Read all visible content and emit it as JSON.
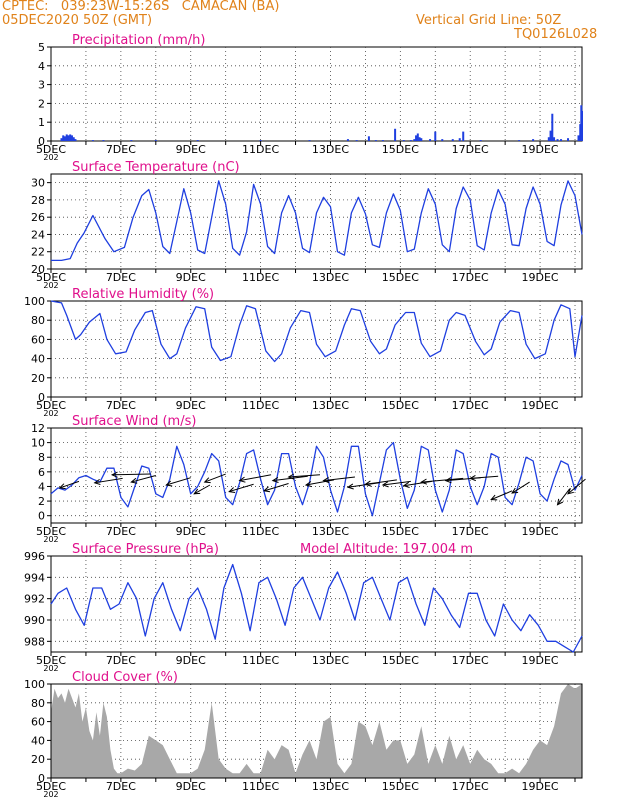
{
  "header": {
    "line1_left": "CPTEC:   039:23W-15:26S   CAMACAN (BA)",
    "line2_left": "05DEC2020 50Z (GMT)",
    "line2_right": "Vertical Grid Line: 50Z",
    "line3_right": "TQ0126L028"
  },
  "colors": {
    "header": "#e0821a",
    "title": "#e0108c",
    "series": "#1f3fe0",
    "cloud": "#a8a8a8",
    "wind_arrow": "#000000"
  },
  "x_axis": {
    "tick_labels": [
      "5DEC",
      "7DEC",
      "9DEC",
      "11DEC",
      "13DEC",
      "15DEC",
      "17DEC",
      "19DEC"
    ],
    "tick_days": [
      0,
      2,
      4,
      6,
      8,
      10,
      12,
      14
    ],
    "range_days": [
      0,
      15.2
    ],
    "under_label": "202"
  },
  "chart_data": [
    {
      "id": "precip",
      "type": "bar",
      "title": "Precipitation (mm/h)",
      "ylim": [
        0,
        5
      ],
      "yticks": [
        0,
        1,
        2,
        3,
        4,
        5
      ],
      "grid": true,
      "points": [
        [
          0.3,
          0.15
        ],
        [
          0.35,
          0.3
        ],
        [
          0.4,
          0.25
        ],
        [
          0.45,
          0.35
        ],
        [
          0.5,
          0.3
        ],
        [
          0.55,
          0.35
        ],
        [
          0.6,
          0.3
        ],
        [
          0.65,
          0.2
        ],
        [
          0.7,
          0.1
        ],
        [
          1.2,
          0.05
        ],
        [
          1.5,
          0.05
        ],
        [
          2.3,
          0.05
        ],
        [
          3.0,
          0.05
        ],
        [
          4.2,
          0.05
        ],
        [
          6.0,
          0.05
        ],
        [
          7.4,
          0.05
        ],
        [
          8.5,
          0.1
        ],
        [
          8.75,
          0.05
        ],
        [
          9.1,
          0.25
        ],
        [
          9.3,
          0.05
        ],
        [
          9.5,
          0.05
        ],
        [
          9.85,
          0.65
        ],
        [
          10.1,
          0.05
        ],
        [
          10.3,
          0.05
        ],
        [
          10.4,
          0.1
        ],
        [
          10.45,
          0.3
        ],
        [
          10.5,
          0.4
        ],
        [
          10.55,
          0.2
        ],
        [
          10.6,
          0.15
        ],
        [
          10.85,
          0.1
        ],
        [
          11.0,
          0.5
        ],
        [
          11.2,
          0.1
        ],
        [
          11.5,
          0.1
        ],
        [
          11.7,
          0.15
        ],
        [
          11.8,
          0.5
        ],
        [
          12.3,
          0.05
        ],
        [
          13.4,
          0.05
        ],
        [
          13.8,
          0.1
        ],
        [
          14.25,
          0.2
        ],
        [
          14.3,
          0.55
        ],
        [
          14.35,
          1.45
        ],
        [
          14.4,
          0.2
        ],
        [
          14.5,
          0.1
        ],
        [
          14.6,
          0.1
        ],
        [
          14.8,
          0.15
        ],
        [
          15.1,
          0.3
        ],
        [
          15.15,
          0.9
        ],
        [
          15.18,
          1.9
        ],
        [
          15.2,
          1.6
        ]
      ]
    },
    {
      "id": "temp",
      "type": "line",
      "title": "Surface Temperature (nC)",
      "ylim": [
        20,
        31
      ],
      "yticks": [
        20,
        22,
        24,
        26,
        28,
        30
      ],
      "grid": true,
      "x": [
        0,
        0.3,
        0.55,
        0.75,
        0.95,
        1.2,
        1.55,
        1.8,
        2.1,
        2.35,
        2.6,
        2.8,
        3.0,
        3.2,
        3.4,
        3.6,
        3.8,
        4.0,
        4.2,
        4.4,
        4.6,
        4.8,
        5.0,
        5.2,
        5.4,
        5.6,
        5.8,
        6.0,
        6.2,
        6.4,
        6.6,
        6.8,
        7.0,
        7.2,
        7.4,
        7.6,
        7.8,
        8.0,
        8.2,
        8.4,
        8.6,
        8.8,
        9.0,
        9.2,
        9.4,
        9.6,
        9.8,
        10.0,
        10.2,
        10.4,
        10.6,
        10.8,
        11.0,
        11.2,
        11.4,
        11.6,
        11.8,
        12.0,
        12.2,
        12.4,
        12.6,
        12.8,
        13.0,
        13.2,
        13.4,
        13.6,
        13.8,
        14.0,
        14.2,
        14.4,
        14.6,
        14.8,
        15.0,
        15.2
      ],
      "y": [
        21,
        21,
        21.2,
        23,
        24.2,
        26.2,
        23.5,
        22,
        22.5,
        26,
        28.5,
        29.2,
        26.5,
        22.6,
        21.8,
        25.5,
        29.3,
        26.5,
        22.2,
        21.8,
        26,
        30.2,
        27.5,
        22.4,
        21.6,
        24.3,
        29.8,
        27.5,
        22.6,
        21.8,
        26.5,
        28.5,
        26.5,
        22.4,
        21.9,
        26.5,
        28.3,
        27.2,
        22,
        21.6,
        26.5,
        28.3,
        26.4,
        22.8,
        22.5,
        26.5,
        28.7,
        26.8,
        22,
        22.3,
        26.5,
        29.3,
        27.5,
        22.8,
        22,
        27,
        29.5,
        28,
        22.7,
        22.2,
        26.5,
        29.2,
        27.5,
        22.8,
        22.7,
        27,
        29.5,
        27.5,
        23.2,
        22.7,
        27.4,
        30.2,
        28.5,
        24
      ]
    },
    {
      "id": "rh",
      "type": "line",
      "title": "Relative Humidity (%)",
      "ylim": [
        0,
        100
      ],
      "yticks": [
        0,
        20,
        40,
        60,
        80,
        100
      ],
      "grid": true,
      "x": [
        0,
        0.3,
        0.45,
        0.7,
        0.85,
        1.1,
        1.4,
        1.6,
        1.85,
        2.15,
        2.4,
        2.7,
        2.9,
        3.15,
        3.4,
        3.6,
        3.85,
        4.15,
        4.4,
        4.6,
        4.85,
        5.15,
        5.4,
        5.6,
        5.85,
        6.15,
        6.4,
        6.6,
        6.85,
        7.15,
        7.4,
        7.6,
        7.85,
        8.15,
        8.4,
        8.6,
        8.85,
        9.15,
        9.4,
        9.6,
        9.85,
        10.15,
        10.4,
        10.6,
        10.85,
        11.15,
        11.4,
        11.6,
        11.85,
        12.15,
        12.4,
        12.6,
        12.85,
        13.15,
        13.4,
        13.6,
        13.85,
        14.15,
        14.4,
        14.6,
        14.85,
        15.0,
        15.2
      ],
      "y": [
        100,
        98,
        85,
        60,
        65,
        78,
        87,
        60,
        45,
        47,
        70,
        88,
        90,
        55,
        40,
        45,
        72,
        94,
        92,
        52,
        38,
        42,
        75,
        95,
        92,
        48,
        37,
        45,
        72,
        90,
        88,
        55,
        42,
        48,
        75,
        92,
        90,
        58,
        45,
        50,
        75,
        88,
        88,
        56,
        42,
        48,
        80,
        88,
        85,
        58,
        44,
        50,
        78,
        90,
        88,
        55,
        40,
        45,
        80,
        96,
        92,
        42,
        85
      ]
    },
    {
      "id": "wind",
      "type": "line",
      "title": "Surface Wind (m/s)",
      "ylim": [
        -1,
        12
      ],
      "yticks": [
        0,
        2,
        4,
        6,
        8,
        10,
        12
      ],
      "grid": true,
      "x": [
        0,
        0.2,
        0.4,
        0.6,
        0.8,
        1.0,
        1.2,
        1.4,
        1.6,
        1.8,
        2.0,
        2.2,
        2.4,
        2.6,
        2.8,
        3.0,
        3.2,
        3.4,
        3.6,
        3.8,
        4.0,
        4.2,
        4.4,
        4.6,
        4.8,
        5.0,
        5.2,
        5.4,
        5.6,
        5.8,
        6.0,
        6.2,
        6.4,
        6.6,
        6.8,
        7.0,
        7.2,
        7.4,
        7.6,
        7.8,
        8.0,
        8.2,
        8.4,
        8.6,
        8.8,
        9.0,
        9.2,
        9.4,
        9.6,
        9.8,
        10.0,
        10.2,
        10.4,
        10.6,
        10.8,
        11.0,
        11.2,
        11.4,
        11.6,
        11.8,
        12.0,
        12.2,
        12.4,
        12.6,
        12.8,
        13.0,
        13.2,
        13.4,
        13.6,
        13.8,
        14.0,
        14.2,
        14.4,
        14.6,
        14.8,
        15.0,
        15.2
      ],
      "y": [
        3,
        3.8,
        3.5,
        4.2,
        5.2,
        5.5,
        5,
        4.6,
        6.5,
        6.5,
        2.5,
        1.2,
        4,
        6.8,
        6.5,
        3,
        2.5,
        5,
        9.5,
        7,
        3,
        4,
        6,
        8.5,
        7.5,
        2.5,
        1.5,
        4.5,
        8.5,
        9,
        5,
        1.5,
        3.5,
        8.5,
        8.5,
        4,
        1.5,
        4.5,
        9.5,
        8,
        3.5,
        0.5,
        4,
        9.5,
        9.5,
        3,
        0,
        4.5,
        9,
        10,
        5,
        1,
        3.5,
        9.5,
        9,
        3.5,
        0.5,
        3.5,
        9,
        8.5,
        4,
        1.5,
        4,
        8.5,
        8,
        2.5,
        1.5,
        4.5,
        8,
        7.5,
        3,
        2,
        5,
        7.5,
        7,
        3.5,
        5.5
      ],
      "arrows": [
        {
          "x": 0.25,
          "y": 3.8,
          "dx": 0.55,
          "dy": 0.9
        },
        {
          "x": 1.25,
          "y": 4.5,
          "dx": 0.8,
          "dy": 0.6
        },
        {
          "x": 1.75,
          "y": 5.6,
          "dx": 1.1,
          "dy": 0.1
        },
        {
          "x": 2.3,
          "y": 4.6,
          "dx": 0.7,
          "dy": 0.9
        },
        {
          "x": 3.3,
          "y": 4.2,
          "dx": 0.7,
          "dy": 1.0
        },
        {
          "x": 4.1,
          "y": 3.0,
          "dx": 0.45,
          "dy": 1.2
        },
        {
          "x": 4.4,
          "y": 4.6,
          "dx": 0.6,
          "dy": 1.1
        },
        {
          "x": 5.1,
          "y": 3.3,
          "dx": 0.7,
          "dy": 1.0
        },
        {
          "x": 5.4,
          "y": 4.8,
          "dx": 0.9,
          "dy": 0.8
        },
        {
          "x": 6.1,
          "y": 3.4,
          "dx": 0.7,
          "dy": 1.0
        },
        {
          "x": 6.35,
          "y": 4.8,
          "dx": 1.0,
          "dy": 0.6
        },
        {
          "x": 6.8,
          "y": 5.3,
          "dx": 0.9,
          "dy": 0.3
        },
        {
          "x": 7.3,
          "y": 4.2,
          "dx": 0.8,
          "dy": 0.7
        },
        {
          "x": 7.8,
          "y": 4.8,
          "dx": 0.9,
          "dy": 0.5
        },
        {
          "x": 8.5,
          "y": 3.9,
          "dx": 0.9,
          "dy": 0.6
        },
        {
          "x": 9.0,
          "y": 4.3,
          "dx": 0.9,
          "dy": 0.6
        },
        {
          "x": 9.5,
          "y": 4.2,
          "dx": 0.8,
          "dy": 0.5
        },
        {
          "x": 10.1,
          "y": 4.1,
          "dx": 0.8,
          "dy": 0.6
        },
        {
          "x": 10.6,
          "y": 4.6,
          "dx": 1.2,
          "dy": 0.5
        },
        {
          "x": 11.3,
          "y": 4.8,
          "dx": 1.0,
          "dy": 0.4
        },
        {
          "x": 12.0,
          "y": 5.1,
          "dx": 0.8,
          "dy": 0.3
        },
        {
          "x": 12.6,
          "y": 2.2,
          "dx": 0.6,
          "dy": 1.2
        },
        {
          "x": 13.2,
          "y": 3.1,
          "dx": 0.5,
          "dy": 1.5
        },
        {
          "x": 14.5,
          "y": 1.5,
          "dx": 0.35,
          "dy": 2.2
        },
        {
          "x": 14.8,
          "y": 3.0,
          "dx": 0.5,
          "dy": 2.0
        }
      ]
    },
    {
      "id": "press",
      "type": "line",
      "title": "Surface Pressure (hPa)",
      "annotation": "Model Altitude: 197.004 m",
      "ylim": [
        987,
        996
      ],
      "yticks": [
        988,
        990,
        992,
        994,
        996
      ],
      "grid": true,
      "x": [
        0,
        0.2,
        0.45,
        0.7,
        0.95,
        1.2,
        1.45,
        1.7,
        1.95,
        2.2,
        2.45,
        2.7,
        2.95,
        3.2,
        3.45,
        3.7,
        3.95,
        4.2,
        4.45,
        4.7,
        4.95,
        5.2,
        5.45,
        5.7,
        5.95,
        6.2,
        6.45,
        6.7,
        6.95,
        7.2,
        7.45,
        7.7,
        7.95,
        8.2,
        8.45,
        8.7,
        8.95,
        9.2,
        9.45,
        9.7,
        9.95,
        10.2,
        10.45,
        10.7,
        10.95,
        11.2,
        11.45,
        11.7,
        11.95,
        12.2,
        12.45,
        12.7,
        12.95,
        13.2,
        13.45,
        13.7,
        13.95,
        14.2,
        14.45,
        14.7,
        14.95,
        15.2
      ],
      "y": [
        991.5,
        992.5,
        993,
        991,
        989.5,
        993,
        993,
        991,
        991.5,
        993.5,
        992,
        988.5,
        992,
        993.5,
        991,
        989,
        992,
        993,
        991,
        988.2,
        993,
        995.2,
        992.5,
        989,
        993.5,
        994,
        992,
        989.5,
        993,
        994,
        992,
        990,
        993,
        994.5,
        992.5,
        990,
        993.5,
        994,
        992,
        990,
        993.5,
        994,
        991.5,
        989.5,
        993,
        992,
        990.5,
        989.3,
        992.5,
        992.5,
        990,
        988.5,
        991.5,
        990,
        989,
        990.5,
        989.5,
        988,
        988,
        987.5,
        987,
        988.5
      ]
    },
    {
      "id": "cloud",
      "type": "area",
      "title": "Cloud Cover (%)",
      "ylim": [
        0,
        100
      ],
      "yticks": [
        0,
        20,
        40,
        60,
        80,
        100
      ],
      "grid": true,
      "x": [
        0,
        0.1,
        0.2,
        0.3,
        0.4,
        0.5,
        0.6,
        0.7,
        0.8,
        0.9,
        1.0,
        1.1,
        1.2,
        1.3,
        1.4,
        1.5,
        1.6,
        1.7,
        1.8,
        1.9,
        2.0,
        2.2,
        2.4,
        2.6,
        2.8,
        3.0,
        3.2,
        3.4,
        3.6,
        3.8,
        4.0,
        4.2,
        4.4,
        4.6,
        4.8,
        5.0,
        5.2,
        5.4,
        5.6,
        5.8,
        6.0,
        6.2,
        6.4,
        6.6,
        6.8,
        7.0,
        7.2,
        7.4,
        7.6,
        7.8,
        8.0,
        8.2,
        8.4,
        8.6,
        8.8,
        9.0,
        9.2,
        9.4,
        9.6,
        9.8,
        10.0,
        10.2,
        10.4,
        10.6,
        10.8,
        11.0,
        11.2,
        11.4,
        11.6,
        11.8,
        12.0,
        12.2,
        12.4,
        12.6,
        12.8,
        13.0,
        13.2,
        13.4,
        13.6,
        13.8,
        14.0,
        14.2,
        14.4,
        14.6,
        14.8,
        15.0,
        15.2
      ],
      "y": [
        70,
        95,
        85,
        90,
        80,
        95,
        85,
        75,
        90,
        60,
        75,
        50,
        40,
        70,
        45,
        80,
        65,
        30,
        10,
        5,
        5,
        10,
        8,
        15,
        45,
        40,
        35,
        20,
        5,
        5,
        5,
        10,
        30,
        80,
        20,
        10,
        5,
        5,
        15,
        5,
        5,
        30,
        20,
        35,
        30,
        5,
        25,
        40,
        20,
        60,
        65,
        15,
        5,
        15,
        60,
        55,
        35,
        60,
        30,
        40,
        40,
        15,
        25,
        55,
        15,
        35,
        15,
        45,
        20,
        35,
        15,
        30,
        20,
        15,
        5,
        5,
        10,
        5,
        15,
        30,
        40,
        35,
        55,
        90,
        100,
        95,
        100
      ]
    }
  ]
}
